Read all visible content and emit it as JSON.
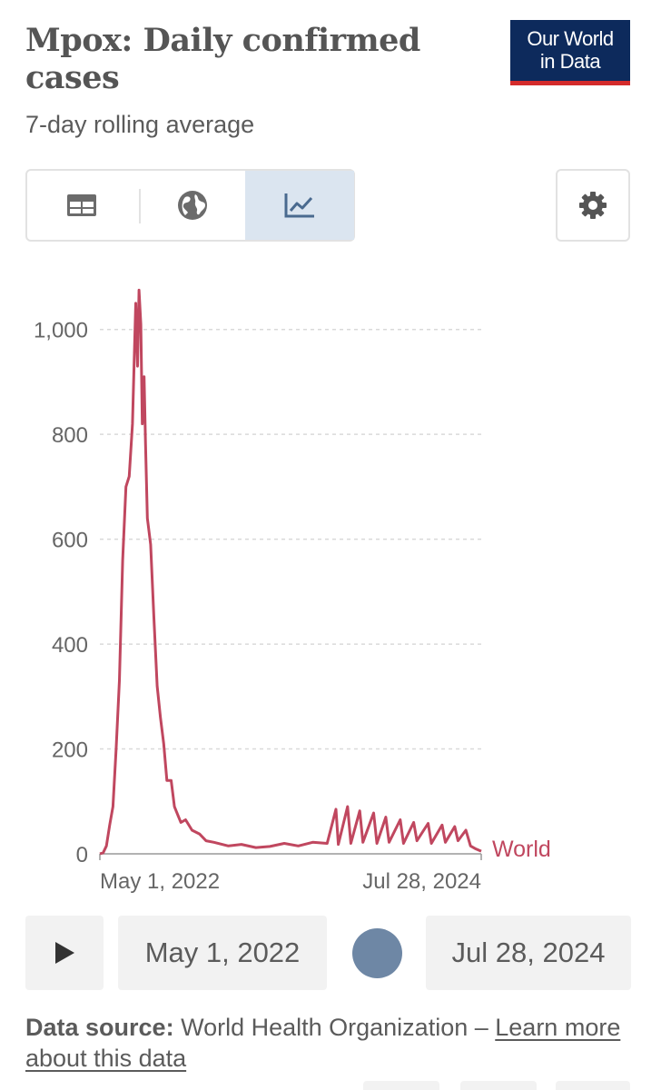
{
  "header": {
    "title": "Mpox: Daily confirmed cases",
    "subtitle": "7-day rolling average",
    "logo_line1": "Our World",
    "logo_line2": "in Data"
  },
  "toolbar": {
    "tabs": [
      {
        "icon": "table-icon",
        "active": false
      },
      {
        "icon": "globe-icon",
        "active": false
      },
      {
        "icon": "line-chart-icon",
        "active": true
      }
    ],
    "settings_icon": "gear-icon"
  },
  "chart_data": {
    "type": "line",
    "x_start": "May 1, 2022",
    "x_end": "Jul 28, 2024",
    "x_tick_labels": [
      "May 1, 2022",
      "Jul 28, 2024"
    ],
    "y_ticks": [
      0,
      200,
      400,
      600,
      800,
      1000
    ],
    "y_tick_labels": [
      "0",
      "200",
      "400",
      "600",
      "800",
      "1,000"
    ],
    "ylim": [
      0,
      1100
    ],
    "grid": true,
    "line_color": "#c0475f",
    "series": [
      {
        "name": "World",
        "points": [
          [
            "2022-05-01",
            0
          ],
          [
            "2022-05-08",
            2
          ],
          [
            "2022-05-15",
            15
          ],
          [
            "2022-05-22",
            55
          ],
          [
            "2022-05-29",
            90
          ],
          [
            "2022-06-05",
            200
          ],
          [
            "2022-06-12",
            330
          ],
          [
            "2022-06-19",
            560
          ],
          [
            "2022-06-26",
            700
          ],
          [
            "2022-07-03",
            720
          ],
          [
            "2022-07-10",
            820
          ],
          [
            "2022-07-17",
            1050
          ],
          [
            "2022-07-21",
            930
          ],
          [
            "2022-07-24",
            1075
          ],
          [
            "2022-07-28",
            1010
          ],
          [
            "2022-07-31",
            820
          ],
          [
            "2022-08-04",
            910
          ],
          [
            "2022-08-07",
            780
          ],
          [
            "2022-08-11",
            640
          ],
          [
            "2022-08-18",
            590
          ],
          [
            "2022-08-25",
            450
          ],
          [
            "2022-09-01",
            320
          ],
          [
            "2022-09-08",
            260
          ],
          [
            "2022-09-15",
            210
          ],
          [
            "2022-09-22",
            140
          ],
          [
            "2022-10-01",
            140
          ],
          [
            "2022-10-08",
            90
          ],
          [
            "2022-10-15",
            75
          ],
          [
            "2022-10-22",
            60
          ],
          [
            "2022-11-01",
            65
          ],
          [
            "2022-11-15",
            45
          ],
          [
            "2022-12-01",
            38
          ],
          [
            "2022-12-15",
            25
          ],
          [
            "2023-01-01",
            22
          ],
          [
            "2023-02-01",
            15
          ],
          [
            "2023-03-01",
            18
          ],
          [
            "2023-04-01",
            12
          ],
          [
            "2023-05-01",
            14
          ],
          [
            "2023-06-01",
            20
          ],
          [
            "2023-07-01",
            15
          ],
          [
            "2023-08-01",
            22
          ],
          [
            "2023-09-01",
            20
          ],
          [
            "2023-09-20",
            85
          ],
          [
            "2023-09-25",
            18
          ],
          [
            "2023-10-15",
            90
          ],
          [
            "2023-10-22",
            20
          ],
          [
            "2023-11-10",
            82
          ],
          [
            "2023-11-17",
            22
          ],
          [
            "2023-12-10",
            78
          ],
          [
            "2023-12-17",
            20
          ],
          [
            "2024-01-05",
            70
          ],
          [
            "2024-01-12",
            22
          ],
          [
            "2024-02-05",
            65
          ],
          [
            "2024-02-12",
            20
          ],
          [
            "2024-03-05",
            60
          ],
          [
            "2024-03-12",
            25
          ],
          [
            "2024-04-05",
            58
          ],
          [
            "2024-04-12",
            20
          ],
          [
            "2024-05-05",
            55
          ],
          [
            "2024-05-12",
            22
          ],
          [
            "2024-06-01",
            52
          ],
          [
            "2024-06-08",
            25
          ],
          [
            "2024-06-25",
            45
          ],
          [
            "2024-07-05",
            15
          ],
          [
            "2024-07-15",
            10
          ],
          [
            "2024-07-28",
            5
          ]
        ]
      }
    ]
  },
  "timeline": {
    "play_icon": "play-icon",
    "start_label": "May 1, 2022",
    "end_label": "Jul 28, 2024"
  },
  "footer": {
    "source_label": "Data source:",
    "source_text": "World Health Organization – ",
    "learn_more": "Learn more about this data"
  }
}
